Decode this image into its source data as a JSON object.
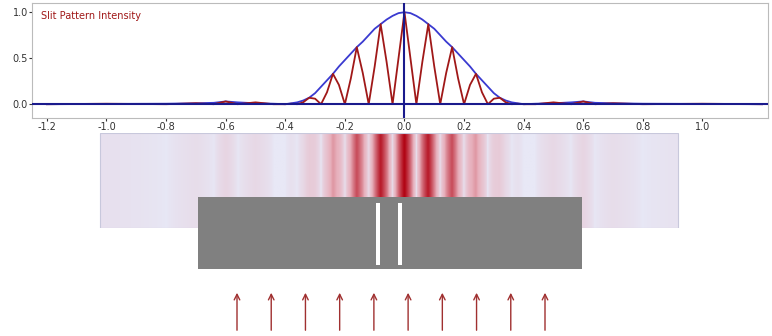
{
  "chart_data": {
    "type": "line",
    "title": "Slit Pattern Intensity",
    "x": [
      -1.2,
      -1.0,
      -0.8,
      -0.7,
      -0.64,
      -0.6,
      -0.56,
      -0.5,
      -0.44,
      -0.4,
      -0.38,
      -0.36,
      -0.34,
      -0.32,
      -0.3,
      -0.28,
      -0.26,
      -0.24,
      -0.22,
      -0.2,
      -0.18,
      -0.16,
      -0.14,
      -0.12,
      -0.1,
      -0.08,
      -0.06,
      -0.04,
      -0.02,
      0.0,
      0.02,
      0.04,
      0.06,
      0.08,
      0.1,
      0.12,
      0.14,
      0.16,
      0.18,
      0.2,
      0.22,
      0.24,
      0.26,
      0.28,
      0.3,
      0.32,
      0.34,
      0.36,
      0.38,
      0.4,
      0.44,
      0.5,
      0.56,
      0.6,
      0.64,
      0.7,
      0.8,
      1.0,
      1.2
    ],
    "series": [
      {
        "color": "#3a3ad0",
        "values": [
          0,
          0.003,
          0.005,
          0.01,
          0.015,
          0.03,
          0.02,
          0.01,
          0.005,
          0,
          0.01,
          0.02,
          0.04,
          0.07,
          0.12,
          0.19,
          0.26,
          0.33,
          0.41,
          0.48,
          0.55,
          0.62,
          0.68,
          0.75,
          0.82,
          0.87,
          0.92,
          0.96,
          0.99,
          1.0,
          0.99,
          0.96,
          0.92,
          0.87,
          0.82,
          0.75,
          0.68,
          0.62,
          0.55,
          0.48,
          0.41,
          0.33,
          0.26,
          0.19,
          0.12,
          0.07,
          0.04,
          0.02,
          0.01,
          0,
          0.005,
          0.01,
          0.02,
          0.03,
          0.015,
          0.01,
          0.005,
          0.003,
          0
        ]
      },
      {
        "color": "#a01818",
        "values": [
          0,
          0.005,
          0,
          0.01,
          0,
          0.03,
          0,
          0.02,
          0,
          0,
          0.005,
          0,
          0.02,
          0.07,
          0.06,
          0,
          0.13,
          0.33,
          0.21,
          0,
          0.28,
          0.62,
          0.34,
          0,
          0.41,
          0.87,
          0.46,
          0,
          0.5,
          1.0,
          0.5,
          0,
          0.46,
          0.87,
          0.41,
          0,
          0.34,
          0.62,
          0.28,
          0,
          0.21,
          0.33,
          0.13,
          0,
          0.06,
          0.07,
          0.02,
          0,
          0.005,
          0,
          0,
          0.02,
          0,
          0.03,
          0,
          0.01,
          0,
          0.005,
          0
        ]
      }
    ],
    "xlim": [
      -1.25,
      1.22
    ],
    "xticks": [
      -1.2,
      {
        "value": -1.0,
        "label": "-1.0"
      },
      -0.8,
      -0.6,
      -0.4,
      -0.2,
      {
        "value": 0.0,
        "label": "0.0"
      },
      0.2,
      0.4,
      0.6,
      0.8,
      {
        "value": 1.0,
        "label": "1.0"
      }
    ],
    "ylim": [
      -0.15,
      1.1
    ],
    "yticks": [
      {
        "value": 0.0,
        "label": "0.0"
      },
      0.5,
      {
        "value": 1.0,
        "label": "1.0"
      }
    ],
    "grid": false
  }
}
